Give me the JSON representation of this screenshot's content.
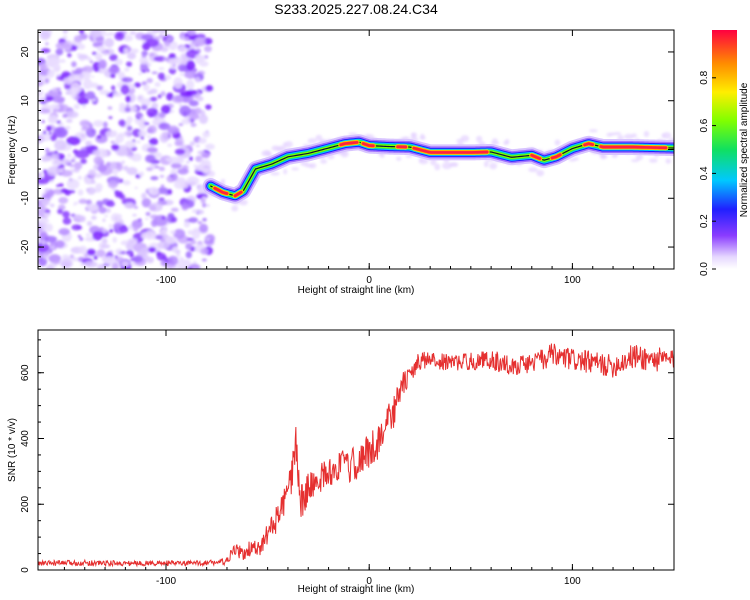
{
  "title": "S233.2025.227.08.24.C34",
  "chart_data": [
    {
      "type": "heatmap",
      "xlabel": "Height of straight line (km)",
      "ylabel": "Frequency (Hz)",
      "xlim": [
        -163,
        150
      ],
      "ylim": [
        -24.5,
        24.5
      ],
      "xticks": [
        -100,
        0,
        100
      ],
      "yticks": [
        -20,
        -10,
        0,
        10,
        20
      ],
      "noise_region_x": [
        -163,
        -78
      ],
      "track": {
        "x": [
          -78,
          -72,
          -66,
          -62,
          -56,
          -48,
          -40,
          -30,
          -20,
          -12,
          -5,
          0,
          10,
          20,
          30,
          50,
          60,
          70,
          80,
          86,
          92,
          100,
          108,
          115,
          130,
          150
        ],
        "freq": [
          -7.5,
          -8.8,
          -9.5,
          -8.5,
          -4.0,
          -3.0,
          -1.5,
          -0.8,
          0.3,
          1.2,
          1.5,
          0.8,
          0.6,
          0.5,
          -0.6,
          -0.6,
          -0.5,
          -1.6,
          -1.2,
          -2.2,
          -1.5,
          0.2,
          1.2,
          0.5,
          0.5,
          0.3
        ]
      },
      "colorbar": {
        "label": "Normalized spectral amplitude",
        "ticks": [
          0.0,
          0.2,
          0.4,
          0.6,
          0.8
        ],
        "tick_labels": [
          "0.0",
          "0.2",
          "0.4",
          "0.6",
          "0.8"
        ],
        "range": [
          0,
          1
        ]
      }
    },
    {
      "type": "line",
      "xlabel": "Height of straight line (km)",
      "ylabel": "SNR (10 * v/v)",
      "xlim": [
        -163,
        150
      ],
      "ylim": [
        0,
        730
      ],
      "xticks": [
        -100,
        0,
        100
      ],
      "yticks": [
        0,
        200,
        400,
        600
      ],
      "line_color": "#e53030",
      "series": [
        {
          "name": "SNR",
          "x": [
            -163,
            -140,
            -120,
            -100,
            -90,
            -80,
            -70,
            -66,
            -62,
            -58,
            -54,
            -50,
            -46,
            -42,
            -38,
            -36,
            -34,
            -30,
            -26,
            -22,
            -18,
            -14,
            -10,
            -6,
            -2,
            0,
            4,
            8,
            12,
            16,
            20,
            24,
            28,
            40,
            60,
            70,
            80,
            90,
            100,
            110,
            120,
            130,
            140,
            150
          ],
          "y": [
            20,
            22,
            20,
            21,
            20,
            22,
            25,
            65,
            45,
            70,
            60,
            110,
            150,
            200,
            280,
            400,
            200,
            250,
            270,
            290,
            300,
            320,
            310,
            330,
            350,
            360,
            390,
            440,
            480,
            560,
            590,
            630,
            640,
            630,
            640,
            620,
            630,
            650,
            640,
            630,
            620,
            650,
            640,
            640
          ],
          "noise_amp": [
            8,
            8,
            8,
            8,
            8,
            8,
            10,
            25,
            20,
            25,
            25,
            35,
            40,
            45,
            55,
            60,
            60,
            45,
            45,
            45,
            45,
            50,
            50,
            55,
            55,
            55,
            60,
            55,
            50,
            40,
            30,
            28,
            25,
            25,
            30,
            30,
            30,
            40,
            35,
            35,
            35,
            40,
            40,
            30
          ]
        }
      ]
    }
  ]
}
